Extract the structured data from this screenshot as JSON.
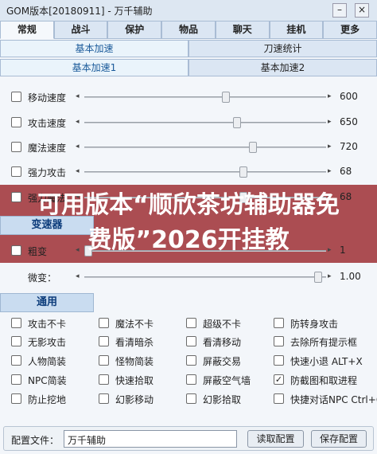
{
  "window": {
    "title": "GOM版本[20180911] - 万千辅助"
  },
  "tabs": [
    "常规",
    "战斗",
    "保护",
    "物品",
    "聊天",
    "挂机",
    "更多"
  ],
  "sub_tabs": {
    "row1": [
      "基本加速",
      "刀速统计"
    ],
    "row2": [
      "基本加速1",
      "基本加速2"
    ]
  },
  "speed_sliders": [
    {
      "label": "移动速度",
      "value": "600"
    },
    {
      "label": "攻击速度",
      "value": "650"
    },
    {
      "label": "魔法速度",
      "value": "720"
    },
    {
      "label": "强力攻击",
      "value": "68"
    },
    {
      "label": "强力魔法",
      "value": "68"
    }
  ],
  "shifter": {
    "title": "变速器",
    "sliders": [
      {
        "label": "粗变",
        "value": "1"
      },
      {
        "label": "微变：",
        "value": "1.00"
      }
    ]
  },
  "overlay_banner": "可用版本“顺欣茶坊辅助器免费版”2026开挂教",
  "general": {
    "title": "通用",
    "options": [
      {
        "label": "攻击不卡",
        "checked": false
      },
      {
        "label": "魔法不卡",
        "checked": false
      },
      {
        "label": "超级不卡",
        "checked": false
      },
      {
        "label": "防转身攻击",
        "checked": false
      },
      {
        "label": "无影攻击",
        "checked": false
      },
      {
        "label": "看清暗杀",
        "checked": false
      },
      {
        "label": "看清移动",
        "checked": false
      },
      {
        "label": "去除所有提示框",
        "checked": false
      },
      {
        "label": "人物简装",
        "checked": false
      },
      {
        "label": "怪物简装",
        "checked": false
      },
      {
        "label": "屏蔽交易",
        "checked": false
      },
      {
        "label": "快速小退 ALT+X",
        "checked": false
      },
      {
        "label": "NPC简装",
        "checked": false
      },
      {
        "label": "快速拾取",
        "checked": false
      },
      {
        "label": "屏蔽空气墙",
        "checked": false
      },
      {
        "label": "防截图和取进程",
        "checked": true
      },
      {
        "label": "防止挖地",
        "checked": false
      },
      {
        "label": "幻影移动",
        "checked": false
      },
      {
        "label": "幻影拾取",
        "checked": false
      },
      {
        "label": "快捷对话NPC Ctrl+Q",
        "checked": false
      }
    ]
  },
  "config": {
    "label": "配置文件：",
    "file": "万千辅助",
    "buttons": [
      "读取配置",
      "保存配置"
    ]
  }
}
